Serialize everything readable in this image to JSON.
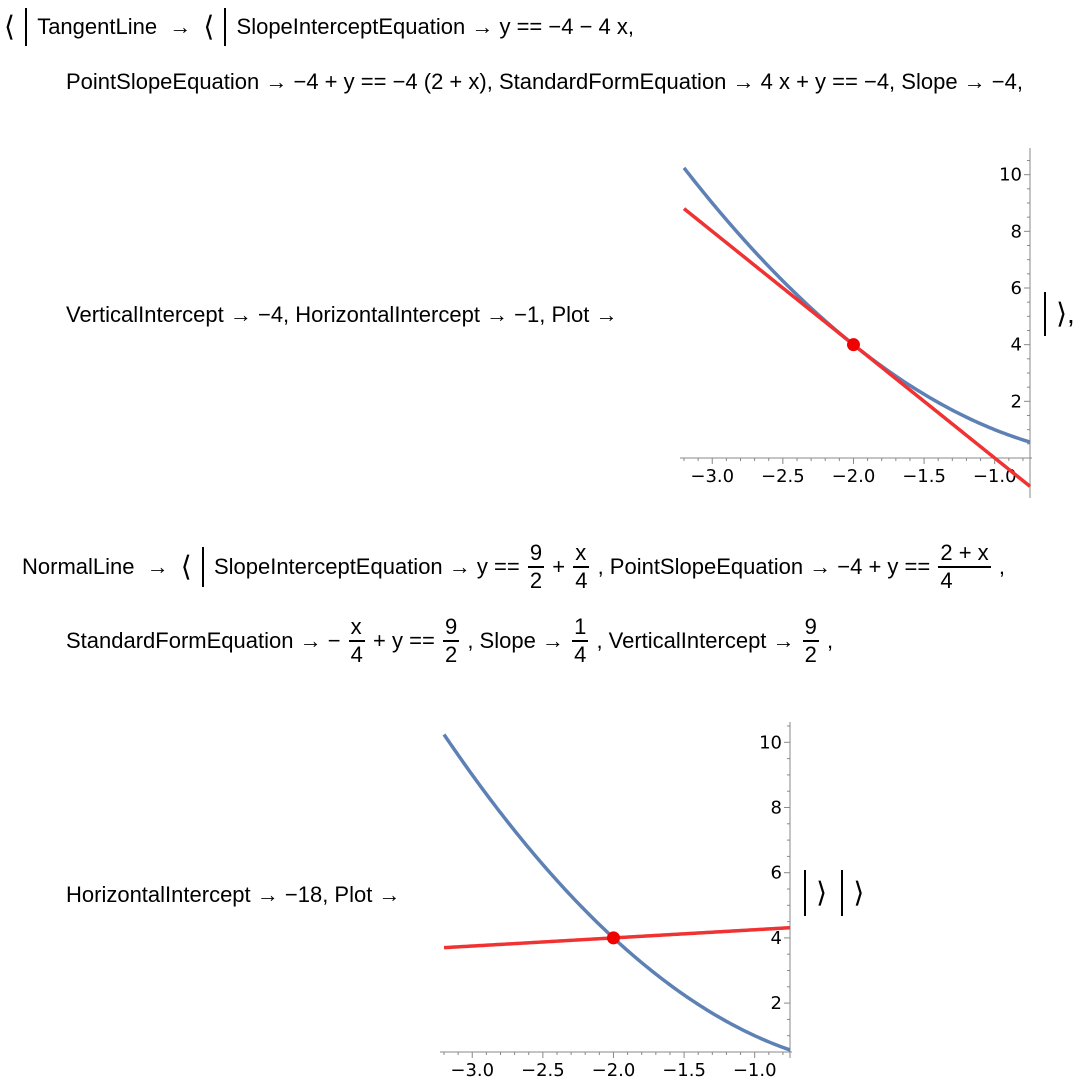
{
  "tangent": {
    "open": "⟨",
    "close": "⟩,",
    "label": "TangentLine",
    "arrow": "→",
    "line1": "SlopeInterceptEquation → y == −4 − 4 x,",
    "line2": "PointSlopeEquation → −4 + y == −4 (2 + x), StandardFormEquation → 4 x + y == −4, Slope → −4,",
    "line3": "VerticalIntercept → −4, HorizontalIntercept → −1, Plot →"
  },
  "normal": {
    "label": "NormalLine",
    "arrow": "→",
    "open": "⟨",
    "close": "⟩",
    "outer_close": "⟩",
    "si_prefix": "SlopeInterceptEquation → y ==",
    "si_frac1_num": "9",
    "si_frac1_den": "2",
    "plus": "+",
    "si_frac2_num": "x",
    "si_frac2_den": "4",
    "ps_prefix": ", PointSlopeEquation → −4 + y ==",
    "ps_frac_num": "2 + x",
    "ps_frac_den": "4",
    "comma": ",",
    "sf_prefix": "StandardFormEquation → −",
    "sf_frac1_num": "x",
    "sf_frac1_den": "4",
    "sf_mid": "+ y ==",
    "sf_frac2_num": "9",
    "sf_frac2_den": "2",
    "slope_prefix": ", Slope →",
    "slope_num": "1",
    "slope_den": "4",
    "vi_prefix": ", VerticalIntercept →",
    "vi_num": "9",
    "vi_den": "2",
    "line3": "HorizontalIntercept → −18, Plot →"
  },
  "chart_data": [
    {
      "type": "line",
      "title": "",
      "xlabel": "",
      "ylabel": "",
      "xlim": [
        -3.2,
        -0.75
      ],
      "ylim": [
        -1.2,
        10.8
      ],
      "x_ticks": [
        -3.0,
        -2.5,
        -2.0,
        -1.5,
        -1.0
      ],
      "x_tick_labels": [
        "−3.0",
        "−2.5",
        "−2.0",
        "−1.5",
        "−1.0"
      ],
      "y_ticks": [
        2,
        4,
        6,
        8,
        10
      ],
      "y_tick_labels": [
        "2",
        "4",
        "6",
        "8",
        "10"
      ],
      "series": [
        {
          "function": "x^2",
          "x_range": [
            -3.2,
            -0.75
          ],
          "color": "#5E81B5"
        },
        {
          "function": "-4 - 4 x",
          "x_range": [
            -3.2,
            -0.75
          ],
          "color": "#F03232"
        }
      ],
      "point": {
        "x": -2,
        "y": 4,
        "color": "#F00000"
      },
      "axes_origin": {
        "x": -0.75,
        "y": 0
      }
    },
    {
      "type": "line",
      "title": "",
      "xlabel": "",
      "ylabel": "",
      "xlim": [
        -3.2,
        -0.75
      ],
      "ylim": [
        0.5,
        10.5
      ],
      "x_ticks": [
        -3.0,
        -2.5,
        -2.0,
        -1.5,
        -1.0
      ],
      "x_tick_labels": [
        "−3.0",
        "−2.5",
        "−2.0",
        "−1.5",
        "−1.0"
      ],
      "y_ticks": [
        2,
        4,
        6,
        8,
        10
      ],
      "y_tick_labels": [
        "2",
        "4",
        "6",
        "8",
        "10"
      ],
      "series": [
        {
          "function": "x^2",
          "x_range": [
            -3.2,
            -0.75
          ],
          "color": "#5E81B5"
        },
        {
          "function": "9/2 + x/4",
          "x_range": [
            -3.2,
            -0.75
          ],
          "color": "#F03232"
        }
      ],
      "point": {
        "x": -2,
        "y": 4,
        "color": "#F00000"
      },
      "axes_origin": {
        "x": -0.75,
        "y": 0.5
      }
    }
  ]
}
